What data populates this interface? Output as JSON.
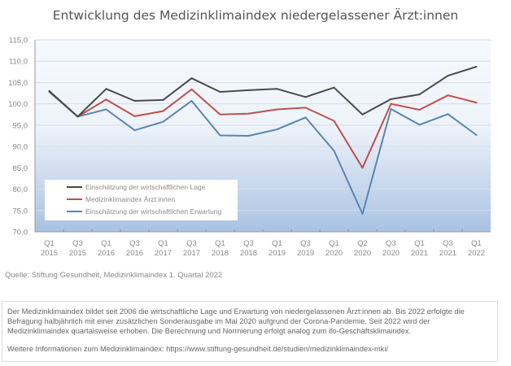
{
  "chart_data": {
    "type": "line",
    "title": "Entwicklung des Medizinklimaindex niedergelassener Ärzt:innen",
    "xlabel": "",
    "ylabel": "",
    "ylim": [
      70,
      115
    ],
    "yticks": [
      "70,0",
      "75,0",
      "80,0",
      "85,0",
      "90,0",
      "95,0",
      "100,0",
      "105,0",
      "110,0",
      "115,0"
    ],
    "ytick_values": [
      70,
      75,
      80,
      85,
      90,
      95,
      100,
      105,
      110,
      115
    ],
    "grid": true,
    "legend_position": "bottom-left",
    "categories": [
      [
        "Q1",
        "2015"
      ],
      [
        "Q3",
        "2015"
      ],
      [
        "Q1",
        "2016"
      ],
      [
        "Q3",
        "2016"
      ],
      [
        "Q1",
        "2017"
      ],
      [
        "Q3",
        "2017"
      ],
      [
        "Q1",
        "2018"
      ],
      [
        "Q3",
        "2018"
      ],
      [
        "Q1",
        "2019"
      ],
      [
        "Q3",
        "2019"
      ],
      [
        "Q1",
        "2020"
      ],
      [
        "Q2",
        "2020"
      ],
      [
        "Q3",
        "2020"
      ],
      [
        "Q1",
        "2021"
      ],
      [
        "Q3",
        "2021"
      ],
      [
        "Q1",
        "2022"
      ]
    ],
    "series": [
      {
        "name": "Einschätzung der wirtschaftlichen Lage",
        "color": "#4a4a4a",
        "values": [
          103.0,
          97.0,
          103.5,
          100.7,
          100.9,
          106.0,
          102.8,
          103.2,
          103.5,
          101.6,
          103.8,
          97.5,
          101.1,
          102.2,
          106.6,
          108.7
        ]
      },
      {
        "name": "Medizinklimaindex Ärzt:innen",
        "color": "#c0504d",
        "values": [
          103.0,
          97.0,
          101.0,
          97.1,
          98.3,
          103.4,
          97.5,
          97.7,
          98.7,
          99.1,
          96.0,
          85.0,
          100.0,
          98.6,
          102.0,
          100.3
        ]
      },
      {
        "name": "Einschätzung der wirtschaftlichen Erwartung",
        "color": "#5b84b1",
        "values": [
          102.8,
          97.0,
          98.7,
          93.8,
          95.8,
          100.7,
          92.6,
          92.5,
          94.0,
          96.8,
          89.0,
          74.2,
          98.8,
          95.1,
          97.6,
          92.7
        ]
      }
    ]
  },
  "source": "Quelle: Stiftung Gesundheit, Medizinklimaindex 1. Quartal 2022",
  "note": {
    "paragraph": "Der Medizinklimaindex bildet seit 2006 die wirtschaftliche Lage und Erwartung von niedergelassenen Ärzt:innen ab. Bis 2022 erfolgte die Befragung halbjährlich mit einer zusätzlichen Sonderausgabe im Mai 2020 aufgrund der Corona-Pandemie. Seit 2022 wird der Medizinklimaindex quartalsweise erhoben. Die Berechnung und Normierung erfolgt analog zum ifo-Geschäftsklimaindex.",
    "more_info": "Weitere Informationen zum Medizinklimaindex: https://www.stiftung-gesundheit.de/studien/medizinklimaindex-mki/"
  }
}
